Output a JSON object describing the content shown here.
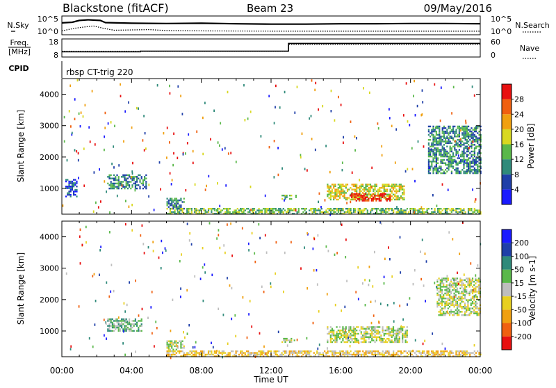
{
  "header": {
    "station": "Blackstone (fitACF)",
    "beam": "Beam 23",
    "date": "09/May/2016"
  },
  "noise_panel": {
    "left_label": "N.Sky",
    "right_label": "N.Search",
    "left_ticks": [
      "10^5",
      "10^0"
    ],
    "right_ticks": [
      "10^5",
      "10^0"
    ]
  },
  "freq_panel": {
    "left_label_1": "Freq.",
    "left_label_2": "[MHz]",
    "right_label": "Nave",
    "left_ticks": [
      "18",
      "8"
    ],
    "right_ticks": [
      "60",
      "0"
    ]
  },
  "cpid_panel": {
    "label": "CPID",
    "program": "rbsp CT-trig 220"
  },
  "time_axis": {
    "label": "Time UT",
    "ticks": [
      "00:00",
      "04:00",
      "08:00",
      "12:00",
      "16:00",
      "20:00",
      "00:00"
    ]
  },
  "range_axis": {
    "label": "Slant Range [km]",
    "ticks": [
      "1000",
      "2000",
      "3000",
      "4000"
    ]
  },
  "power_colorbar": {
    "label": "Power [dB]",
    "ticks": [
      "4",
      "8",
      "12",
      "16",
      "20",
      "24",
      "28"
    ],
    "colors": [
      "#1a1aff",
      "#1f3fa8",
      "#2f8a7a",
      "#5ab84a",
      "#d8d820",
      "#f0a010",
      "#f06010",
      "#e81010"
    ]
  },
  "velocity_colorbar": {
    "label": "Velocity [m s-1]",
    "ticks": [
      "200",
      "100",
      "50",
      "15",
      "-15",
      "-50",
      "-100",
      "-200"
    ],
    "colors": [
      "#1a1aff",
      "#1f3fa8",
      "#2f8a7a",
      "#5ab84a",
      "#bebebe",
      "#e8d020",
      "#f0a010",
      "#f06010",
      "#e81010"
    ]
  },
  "chart_data": [
    {
      "type": "line",
      "panel": "noise",
      "x_range_hours": [
        0,
        24
      ],
      "log_scale": true,
      "series": [
        {
          "name": "N.Sky",
          "style": "solid",
          "points": [
            [
              0,
              3.2
            ],
            [
              0.6,
              3.4
            ],
            [
              1.0,
              4.0
            ],
            [
              1.5,
              4.2
            ],
            [
              2.2,
              4.0
            ],
            [
              2.5,
              3.3
            ],
            [
              4.0,
              3.1
            ],
            [
              6.0,
              3.0
            ],
            [
              8.0,
              3.1
            ],
            [
              10.0,
              2.9
            ],
            [
              12.0,
              2.8
            ],
            [
              14.0,
              2.8
            ],
            [
              16.0,
              2.9
            ],
            [
              18.0,
              2.9
            ],
            [
              20.0,
              3.0
            ],
            [
              22.0,
              3.0
            ],
            [
              24.0,
              2.9
            ]
          ]
        },
        {
          "name": "N.Search",
          "style": "dotted",
          "points": [
            [
              0,
              0.6
            ],
            [
              0.7,
              1.4
            ],
            [
              1.2,
              1.8
            ],
            [
              1.8,
              2.2
            ],
            [
              2.4,
              1.4
            ],
            [
              3.0,
              0.8
            ],
            [
              5.0,
              1.0
            ],
            [
              6.0,
              0.7
            ],
            [
              8.0,
              0.6
            ],
            [
              12.0,
              0.5
            ],
            [
              16.0,
              0.5
            ],
            [
              20.0,
              0.5
            ],
            [
              24.0,
              0.5
            ]
          ]
        }
      ]
    },
    {
      "type": "line",
      "panel": "freq",
      "x_range_hours": [
        0,
        24
      ],
      "series": [
        {
          "name": "Freq.",
          "style": "solid",
          "ylim": [
            8,
            18
          ],
          "points": [
            [
              0,
              10.5
            ],
            [
              4.5,
              10.5
            ],
            [
              4.5,
              10.9
            ],
            [
              13.0,
              10.9
            ],
            [
              13.0,
              16.0
            ],
            [
              24.0,
              16.0
            ]
          ]
        },
        {
          "name": "Nave",
          "style": "dotted",
          "ylim": [
            0,
            60
          ],
          "points": [
            [
              0,
              17
            ],
            [
              13.0,
              17
            ],
            [
              13.0,
              44
            ],
            [
              24.0,
              44
            ]
          ]
        }
      ]
    },
    {
      "type": "heatmap",
      "panel": "power",
      "x_range_hours": [
        0,
        24
      ],
      "ylim_km": [
        180,
        4500
      ],
      "regions": [
        {
          "t": [
            2.6,
            4.8
          ],
          "r": [
            1000,
            1450
          ],
          "level": 2
        },
        {
          "t": [
            15.2,
            19.6
          ],
          "r": [
            650,
            1150
          ],
          "level": 4
        },
        {
          "t": [
            16.5,
            18.8
          ],
          "r": [
            620,
            850
          ],
          "level": 7
        },
        {
          "t": [
            12.6,
            13.4
          ],
          "r": [
            650,
            800
          ],
          "level": 3
        },
        {
          "t": [
            6.0,
            7.0
          ],
          "r": [
            350,
            700
          ],
          "level": 2
        },
        {
          "t": [
            0.2,
            0.9
          ],
          "r": [
            750,
            1300
          ],
          "level": 1
        },
        {
          "t": [
            21.0,
            24.0
          ],
          "r": [
            1500,
            3000
          ],
          "level": 2
        },
        {
          "t": [
            6.0,
            24.0
          ],
          "r": [
            180,
            380
          ],
          "level": 3
        }
      ]
    },
    {
      "type": "heatmap",
      "panel": "velocity",
      "x_range_hours": [
        0,
        24
      ],
      "ylim_km": [
        180,
        4500
      ],
      "regions": [
        {
          "t": [
            2.6,
            4.6
          ],
          "r": [
            1000,
            1400
          ],
          "level": 3
        },
        {
          "t": [
            15.2,
            19.8
          ],
          "r": [
            650,
            1150
          ],
          "level": 4
        },
        {
          "t": [
            21.5,
            24.0
          ],
          "r": [
            1500,
            2700
          ],
          "level": 4
        },
        {
          "t": [
            12.6,
            13.4
          ],
          "r": [
            650,
            780
          ],
          "level": 4
        },
        {
          "t": [
            6.0,
            7.0
          ],
          "r": [
            350,
            700
          ],
          "level": 4
        },
        {
          "t": [
            6.0,
            24.0
          ],
          "r": [
            180,
            380
          ],
          "level": 5
        }
      ]
    }
  ]
}
